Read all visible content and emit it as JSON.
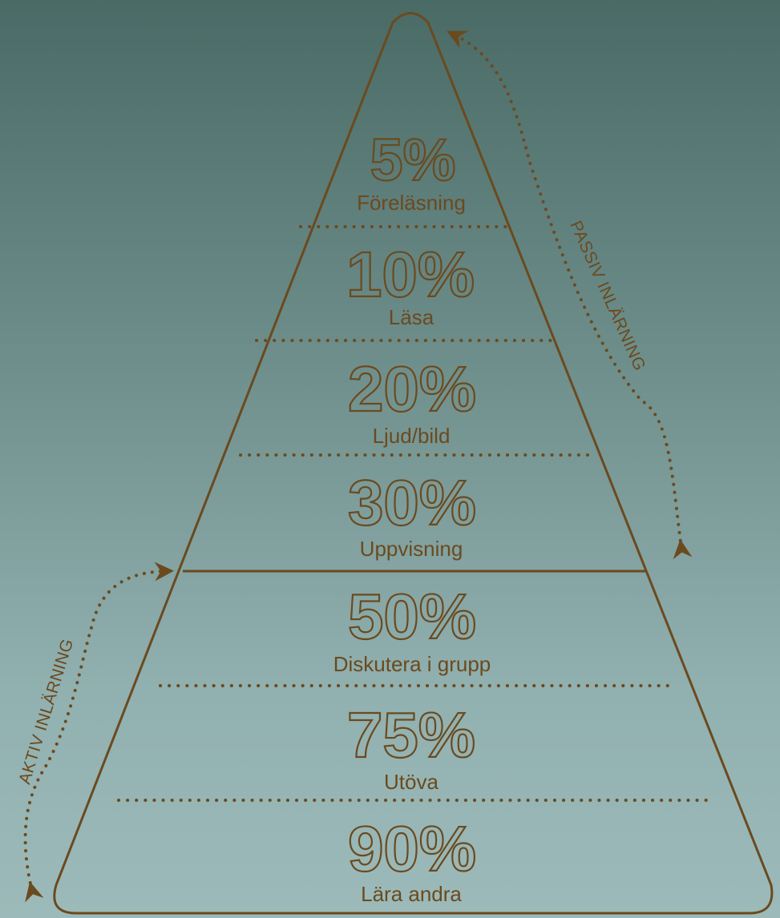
{
  "levels": [
    {
      "percent": "5%",
      "label": "Föreläsning"
    },
    {
      "percent": "10%",
      "label": "Läsa"
    },
    {
      "percent": "20%",
      "label": "Ljud/bild"
    },
    {
      "percent": "30%",
      "label": "Uppvisning"
    },
    {
      "percent": "50%",
      "label": "Diskutera i grupp"
    },
    {
      "percent": "75%",
      "label": "Utöva"
    },
    {
      "percent": "90%",
      "label": "Lära andra"
    }
  ],
  "passive_label": "PASSIV INLÄRNING",
  "active_label": "AKTIV INLÄRNING",
  "colors": {
    "accent": "#6b4a1e",
    "background_top": "#4a6a66",
    "background_bottom": "#9cbab9"
  }
}
